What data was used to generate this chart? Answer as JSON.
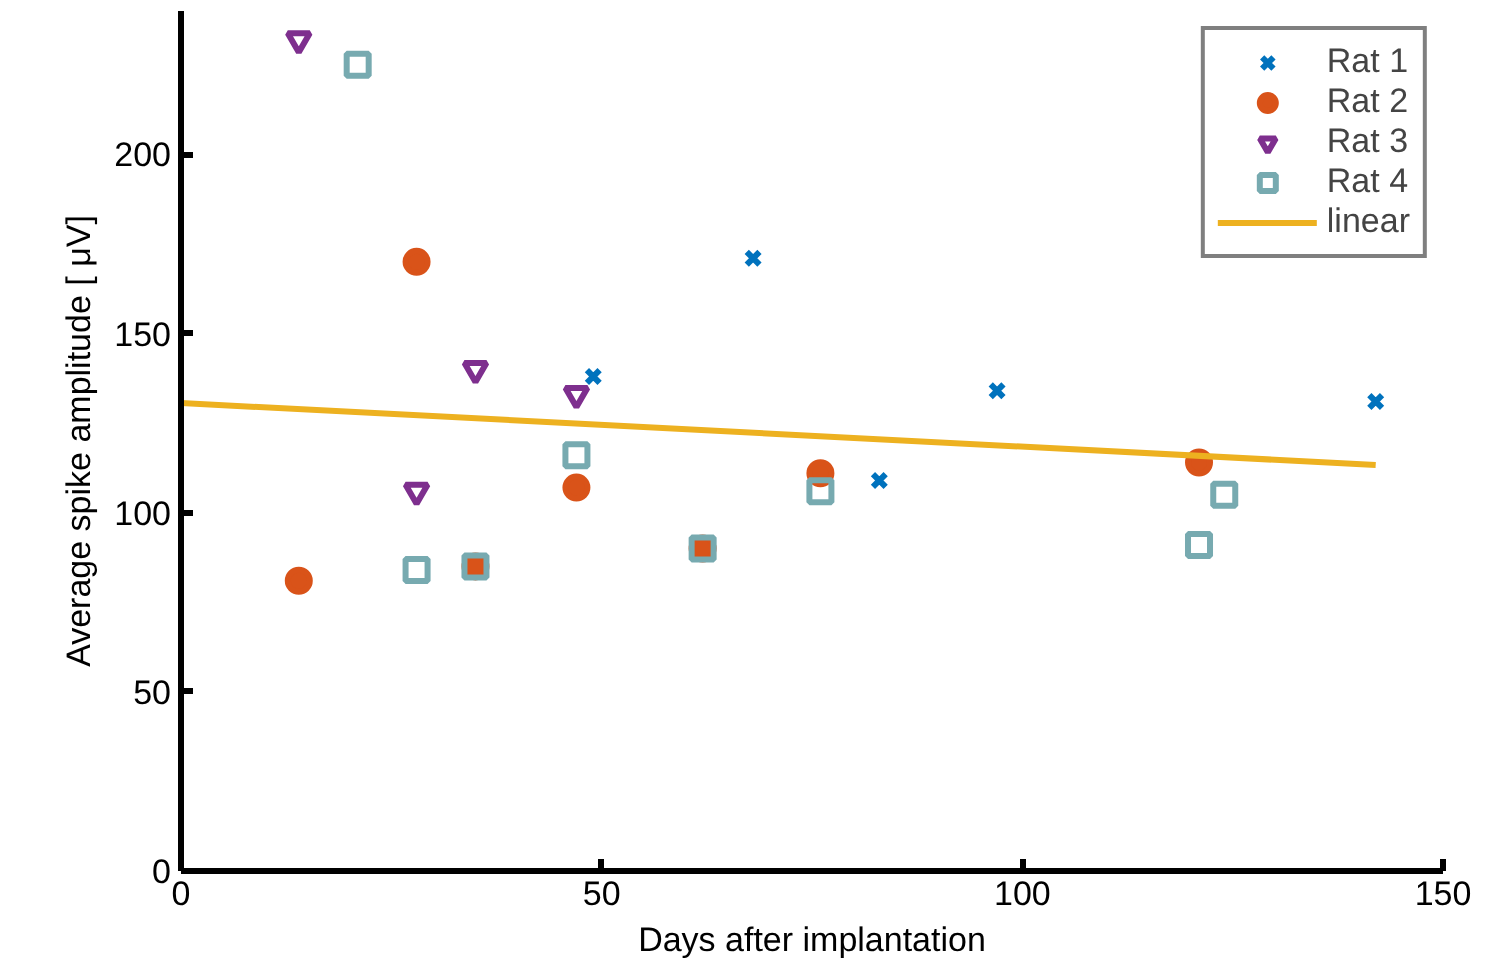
{
  "chart_data": {
    "type": "scatter",
    "xlabel": "Days after implantation",
    "ylabel": "Average spike amplitude [ μV]",
    "xlim": [
      0,
      150
    ],
    "ylim": [
      0,
      240
    ],
    "xticks": [
      0,
      50,
      100,
      150
    ],
    "yticks": [
      0,
      50,
      100,
      150,
      200
    ],
    "grid": false,
    "legend": "top right",
    "series": [
      {
        "name": "Rat 1",
        "color": "#0072bd",
        "marker": "cross",
        "x": [
          49,
          68,
          83,
          97,
          142
        ],
        "values": [
          138,
          171,
          109,
          134,
          131
        ]
      },
      {
        "name": "Rat 2",
        "color": "#d95319",
        "marker": "circle",
        "x": [
          14,
          28,
          35,
          47,
          62,
          76,
          121
        ],
        "values": [
          81,
          170,
          85,
          107,
          90,
          111,
          114
        ]
      },
      {
        "name": "Rat 3",
        "color": "#7e2f8e",
        "marker": "triangle",
        "x": [
          14,
          28,
          35,
          47
        ],
        "values": [
          232,
          106,
          140,
          133
        ]
      },
      {
        "name": "Rat 4",
        "color": "#77aab0",
        "marker": "square",
        "x": [
          21,
          28,
          35,
          47,
          62,
          76,
          121,
          124
        ],
        "values": [
          225,
          84,
          85,
          116,
          90,
          106,
          91,
          105
        ]
      },
      {
        "name": "linear",
        "type": "line",
        "color": "#edb120",
        "marker": "none",
        "x": [
          0,
          142
        ],
        "values": [
          130.6,
          113.3
        ]
      }
    ]
  }
}
